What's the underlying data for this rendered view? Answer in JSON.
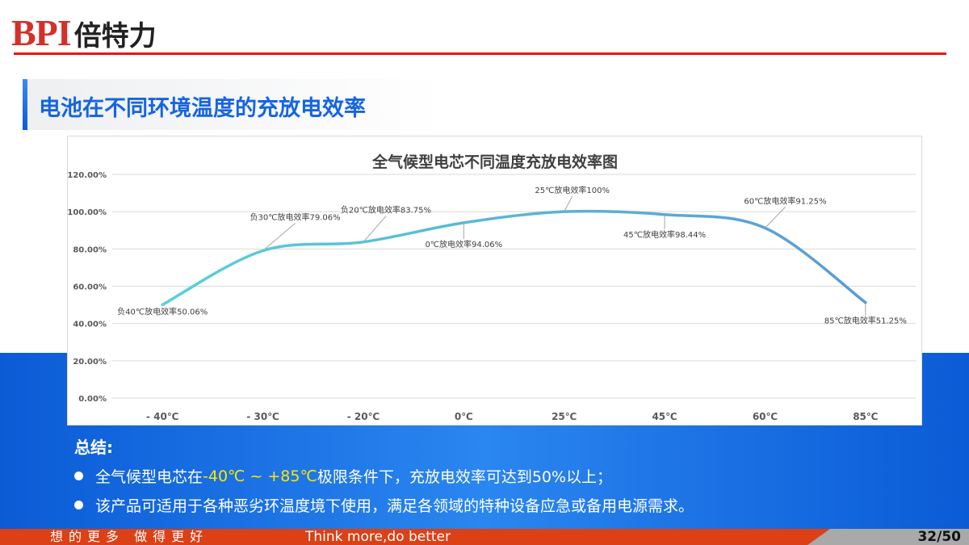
{
  "logo": {
    "latin": "BPI",
    "chinese": "倍特力"
  },
  "slide_title": "电池在不同环境温度的充放电效率",
  "chart_data": {
    "type": "line",
    "title": "全气候型电芯不同温度充放电效率图",
    "categories": [
      "- 40℃",
      "- 30℃",
      "- 20℃",
      "0℃",
      "25℃",
      "45℃",
      "60℃",
      "85℃"
    ],
    "values": [
      50.06,
      79.06,
      83.75,
      94.06,
      100,
      98.44,
      91.25,
      51.25
    ],
    "data_labels": [
      "负40℃放电效率50.06%",
      "负30℃放电效率79.06%",
      "负20℃放电效率83.75%",
      "0℃放电效率94.06%",
      "25℃放电效率100%",
      "45℃放电效率98.44%",
      "60℃放电效率91.25%",
      "85℃放电效率51.25%"
    ],
    "yticks": [
      "0.00%",
      "20.00%",
      "40.00%",
      "60.00%",
      "80.00%",
      "100.00%",
      "120.00%"
    ],
    "ylim": [
      0,
      120
    ],
    "grid": true,
    "colors": {
      "start": "#5ad0d6",
      "end": "#5b9bd5"
    }
  },
  "summary": {
    "heading": "总结:",
    "line1": {
      "a": "全气候型电芯在",
      "b": "-40℃ ~ +85℃",
      "c": "极限条件下，充放电效率可达到50%以上；"
    },
    "line2": "该产品可适用于各种恶劣环温度境下使用，满足各领域的特种设备应急或备用电源需求。"
  },
  "footer": {
    "slogan_cn": "想的更多 做得更好",
    "slogan_en": "Think more,do better",
    "page": "32/50"
  }
}
